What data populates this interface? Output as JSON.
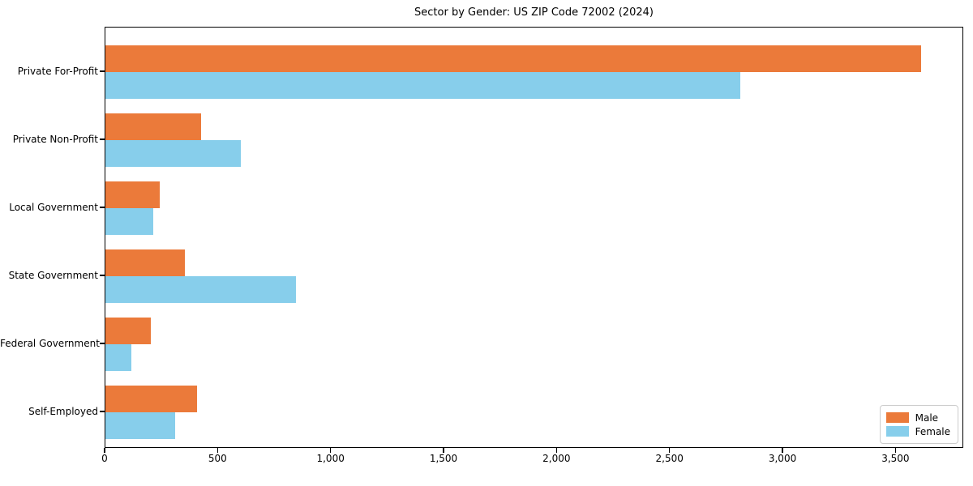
{
  "title": "Sector by Gender: US ZIP Code 72002 (2024)",
  "colors": {
    "male": "#EB7A3A",
    "female": "#87CEEB",
    "axis": "#000000",
    "legend_border": "#CCCCCC",
    "background": "#FFFFFF"
  },
  "chart_data": {
    "type": "bar",
    "orientation": "horizontal",
    "title": "Sector by Gender: US ZIP Code 72002 (2024)",
    "categories": [
      "Private For-Profit",
      "Private Non-Profit",
      "Local Government",
      "State Government",
      "Federal Government",
      "Self-Employed"
    ],
    "series": [
      {
        "name": "Male",
        "color": "#EB7A3A",
        "values": [
          3610,
          425,
          240,
          350,
          200,
          405
        ]
      },
      {
        "name": "Female",
        "color": "#87CEEB",
        "values": [
          2810,
          600,
          210,
          845,
          115,
          310
        ]
      }
    ],
    "xlabel": "",
    "ylabel": "",
    "xlim": [
      0,
      3800
    ],
    "xticks": [
      0,
      500,
      1000,
      1500,
      2000,
      2500,
      3000,
      3500
    ],
    "xtick_labels": [
      "0",
      "500",
      "1,000",
      "1,500",
      "2,000",
      "2,500",
      "3,000",
      "3,500"
    ],
    "grid": false,
    "legend": {
      "position": "lower right",
      "entries": [
        "Male",
        "Female"
      ]
    }
  }
}
